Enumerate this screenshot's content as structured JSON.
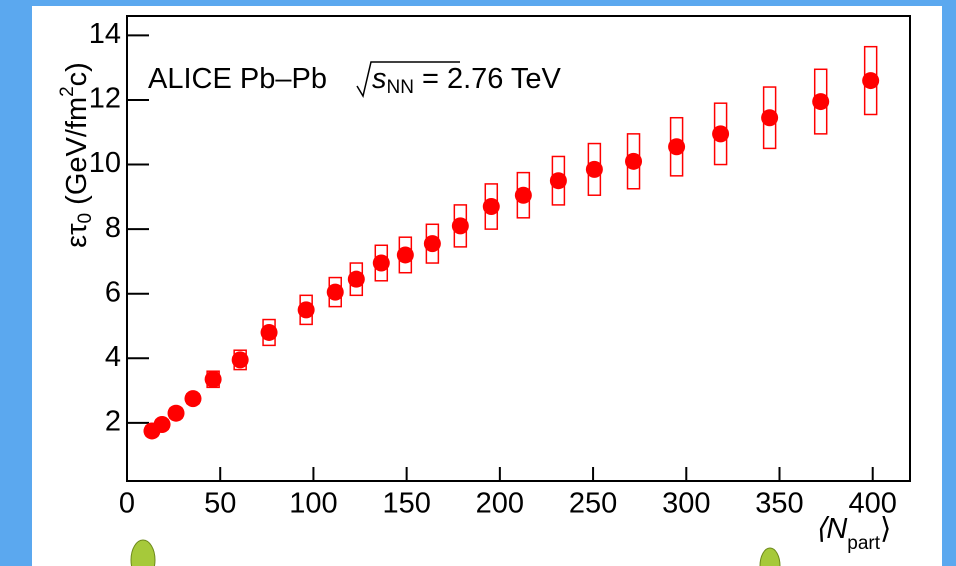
{
  "chart_data": {
    "type": "scatter",
    "annotation": [
      "ALICE Pb–Pb",
      "s",
      "NN",
      "= 2.76 TeV"
    ],
    "y_label": [
      "ετ",
      "0",
      " (GeV/fm",
      "2",
      "c)"
    ],
    "x_label": [
      "⟨N",
      "part",
      "⟩"
    ],
    "x": [
      13.4,
      18.8,
      26.3,
      35.4,
      46.2,
      60.7,
      76.2,
      96.1,
      111.7,
      123,
      136.4,
      149.3,
      163.8,
      178.8,
      195.4,
      212.6,
      231.4,
      250.7,
      271.7,
      294.8,
      318.4,
      344.7,
      372.1,
      398.9
    ],
    "values": [
      1.75,
      1.95,
      2.3,
      2.75,
      3.35,
      3.95,
      4.8,
      5.5,
      6.05,
      6.45,
      6.95,
      7.2,
      7.55,
      8.1,
      8.7,
      9.05,
      9.5,
      9.85,
      10.1,
      10.55,
      10.95,
      11.45,
      11.95,
      12.6
    ],
    "errors": [
      0.15,
      0.15,
      0.15,
      0.15,
      0.25,
      0.3,
      0.4,
      0.45,
      0.45,
      0.5,
      0.55,
      0.55,
      0.6,
      0.65,
      0.7,
      0.7,
      0.75,
      0.8,
      0.85,
      0.9,
      0.95,
      0.95,
      1.0,
      1.05
    ],
    "color": "#ff0000",
    "xlim": [
      0,
      420
    ],
    "ylim": [
      0.2,
      14.6
    ],
    "xticks": [
      0,
      50,
      100,
      150,
      200,
      250,
      300,
      350,
      400
    ],
    "yticks": [
      2,
      4,
      6,
      8,
      10,
      12,
      14
    ]
  }
}
